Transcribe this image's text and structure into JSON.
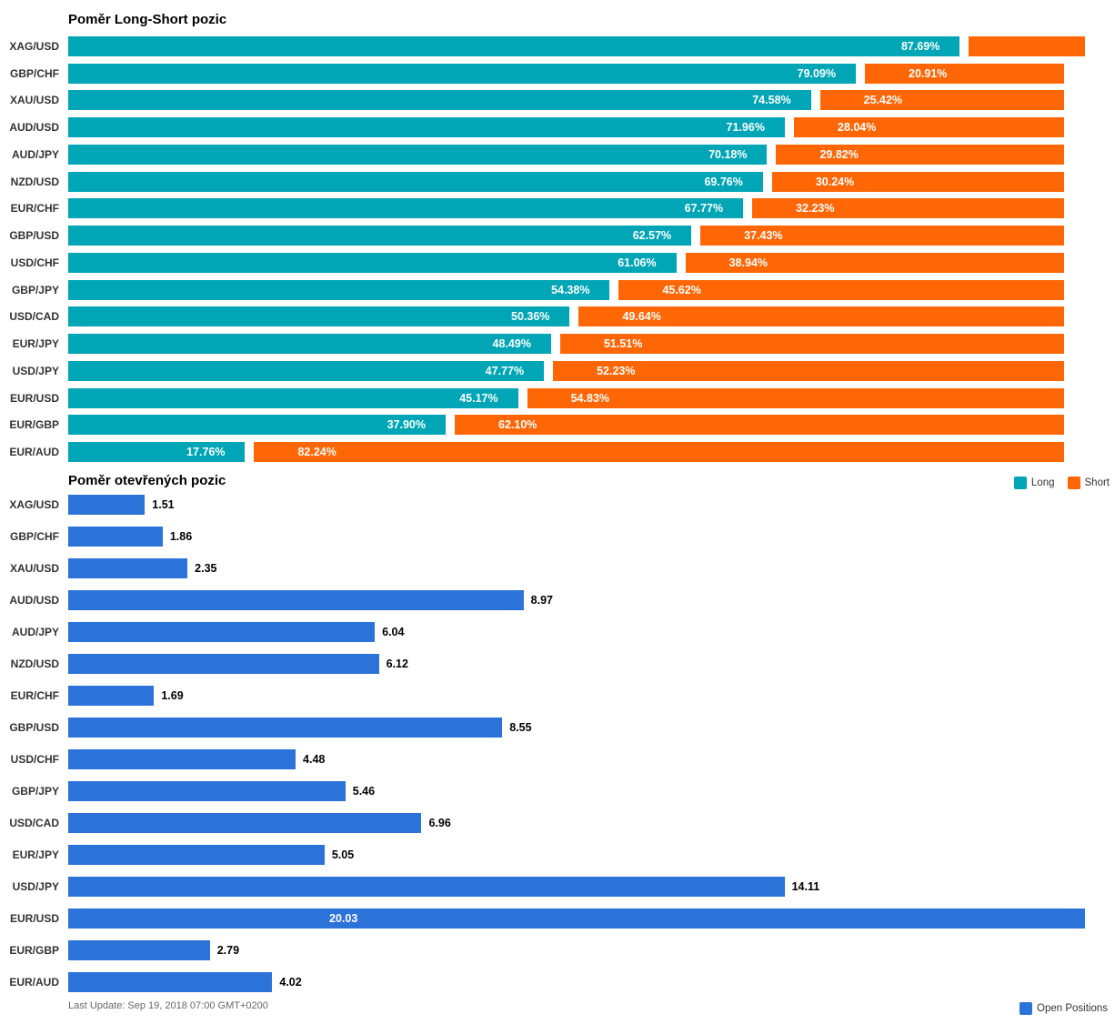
{
  "chart_data": [
    {
      "type": "bar",
      "orientation": "horizontal",
      "stacking": "percent",
      "title": "Poměr Long-Short pozic",
      "xlim": [
        0,
        100
      ],
      "grid": false,
      "legend_position": "bottom-right",
      "categories": [
        "XAG/USD",
        "GBP/CHF",
        "XAU/USD",
        "AUD/USD",
        "AUD/JPY",
        "NZD/USD",
        "EUR/CHF",
        "GBP/USD",
        "USD/CHF",
        "GBP/JPY",
        "USD/CAD",
        "EUR/JPY",
        "USD/JPY",
        "EUR/USD",
        "EUR/GBP",
        "EUR/AUD"
      ],
      "series": [
        {
          "name": "Long",
          "color": "#00a6b6",
          "values": [
            87.69,
            79.09,
            74.58,
            71.96,
            70.18,
            69.76,
            67.77,
            62.57,
            61.06,
            54.38,
            50.36,
            48.49,
            47.77,
            45.17,
            37.9,
            17.76
          ],
          "labels": [
            "87.69%",
            "79.09%",
            "74.58%",
            "71.96%",
            "70.18%",
            "69.76%",
            "67.77%",
            "62.57%",
            "61.06%",
            "54.38%",
            "50.36%",
            "48.49%",
            "47.77%",
            "45.17%",
            "37.90%",
            "17.76%"
          ]
        },
        {
          "name": "Short",
          "color": "#ff6606",
          "values": [
            12.31,
            20.91,
            25.42,
            28.04,
            29.82,
            30.24,
            32.23,
            37.43,
            38.94,
            45.62,
            49.64,
            51.51,
            52.23,
            54.83,
            62.1,
            82.24
          ],
          "labels": [
            "",
            "20.91%",
            "25.42%",
            "28.04%",
            "29.82%",
            "30.24%",
            "32.23%",
            "37.43%",
            "38.94%",
            "45.62%",
            "49.64%",
            "51.51%",
            "52.23%",
            "54.83%",
            "62.10%",
            "82.24%"
          ]
        }
      ]
    },
    {
      "type": "bar",
      "orientation": "horizontal",
      "title": "Poměr otevřených pozic",
      "xlim": [
        0,
        20.03
      ],
      "grid": false,
      "legend_position": "bottom-right",
      "categories": [
        "XAG/USD",
        "GBP/CHF",
        "XAU/USD",
        "AUD/USD",
        "AUD/JPY",
        "NZD/USD",
        "EUR/CHF",
        "GBP/USD",
        "USD/CHF",
        "GBP/JPY",
        "USD/CAD",
        "EUR/JPY",
        "USD/JPY",
        "EUR/USD",
        "EUR/GBP",
        "EUR/AUD"
      ],
      "series": [
        {
          "name": "Open Positions",
          "color": "#2b72d9",
          "values": [
            1.51,
            1.86,
            2.35,
            8.97,
            6.04,
            6.12,
            1.69,
            8.55,
            4.48,
            5.46,
            6.96,
            5.05,
            14.11,
            20.03,
            2.79,
            4.02
          ],
          "labels": [
            "1.51",
            "1.86",
            "2.35",
            "8.97",
            "6.04",
            "6.12",
            "1.69",
            "8.55",
            "4.48",
            "5.46",
            "6.96",
            "5.05",
            "14.11",
            "20.03",
            "2.79",
            "4.02"
          ]
        }
      ]
    }
  ],
  "footer": {
    "last_update": "Last Update: Sep 19, 2018 07:00 GMT+0200"
  }
}
